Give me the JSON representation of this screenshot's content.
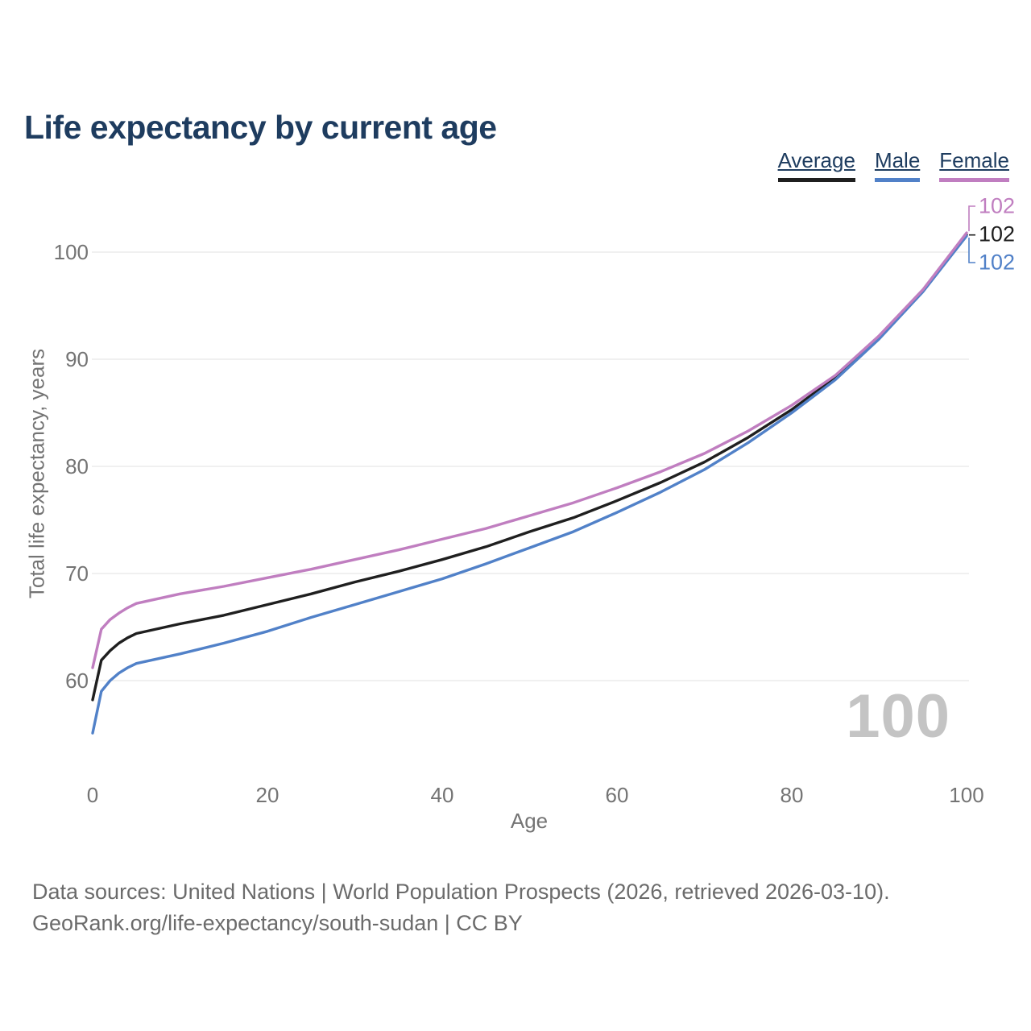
{
  "header": {
    "title": "Life expectancy by current age"
  },
  "chart_data": {
    "type": "line",
    "title": "Life expectancy by current age",
    "xlabel": "Age",
    "ylabel": "Total life expectancy, years",
    "xticks": [
      0,
      20,
      40,
      60,
      80,
      100
    ],
    "yticks": [
      60,
      70,
      80,
      90,
      100
    ],
    "xlim": [
      0,
      100
    ],
    "ylim": [
      55,
      104
    ],
    "grid": "horizontal",
    "legend_position": "top-right",
    "watermark": "100",
    "x": [
      0,
      1,
      2,
      3,
      4,
      5,
      10,
      15,
      20,
      25,
      30,
      35,
      40,
      45,
      50,
      55,
      60,
      65,
      70,
      75,
      80,
      85,
      90,
      95,
      100
    ],
    "series": [
      {
        "name": "Average",
        "color": "#1f1f1f",
        "values": [
          58.2,
          61.9,
          62.8,
          63.5,
          64.0,
          64.4,
          65.3,
          66.1,
          67.1,
          68.1,
          69.2,
          70.2,
          71.3,
          72.5,
          73.9,
          75.2,
          76.8,
          78.5,
          80.4,
          82.7,
          85.3,
          88.3,
          92.0,
          96.4,
          101.6
        ]
      },
      {
        "name": "Male",
        "color": "#5181c8",
        "values": [
          55.1,
          59.0,
          60.0,
          60.7,
          61.2,
          61.6,
          62.5,
          63.5,
          64.6,
          65.9,
          67.1,
          68.3,
          69.5,
          70.9,
          72.4,
          73.9,
          75.7,
          77.6,
          79.7,
          82.2,
          85.0,
          88.1,
          91.9,
          96.3,
          101.5
        ]
      },
      {
        "name": "Female",
        "color": "#c07ec0",
        "values": [
          61.2,
          64.8,
          65.7,
          66.3,
          66.8,
          67.2,
          68.1,
          68.8,
          69.6,
          70.4,
          71.3,
          72.2,
          73.2,
          74.2,
          75.4,
          76.6,
          78.0,
          79.5,
          81.2,
          83.3,
          85.7,
          88.5,
          92.2,
          96.5,
          101.8
        ]
      }
    ],
    "end_labels": [
      {
        "series": "Female",
        "text": "102"
      },
      {
        "series": "Average",
        "text": "102"
      },
      {
        "series": "Male",
        "text": "102"
      }
    ]
  },
  "footer": {
    "lines": [
      "Data sources: United Nations | World Population Prospects (2026, retrieved 2026-03-10).",
      "GeoRank.org/life-expectancy/south-sudan | CC BY"
    ]
  }
}
